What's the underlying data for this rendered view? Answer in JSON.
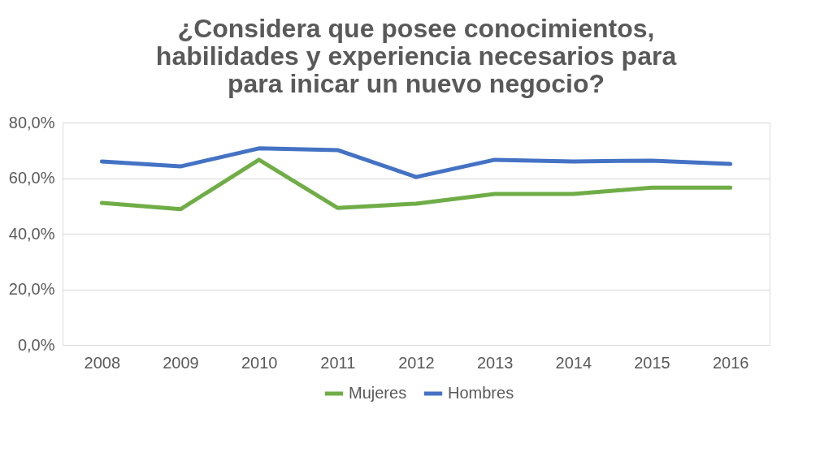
{
  "chart_data": {
    "type": "line",
    "title": "¿Considera que posee conocimientos, habilidades y experiencia necesarios para para inicar un nuevo negocio?",
    "categories": [
      "2008",
      "2009",
      "2010",
      "2011",
      "2012",
      "2013",
      "2014",
      "2015",
      "2016"
    ],
    "series": [
      {
        "name": "Mujeres",
        "color": "#70ad47",
        "values": [
          51.1,
          48.8,
          66.6,
          49.3,
          50.8,
          54.3,
          54.3,
          56.6,
          56.6
        ]
      },
      {
        "name": "Hombres",
        "color": "#4472c4",
        "values": [
          66.0,
          64.2,
          70.7,
          70.1,
          60.4,
          66.6,
          66.0,
          66.3,
          65.1
        ]
      }
    ],
    "ylim": [
      0,
      80
    ],
    "yticks": [
      {
        "value": 0,
        "label": "0,0%"
      },
      {
        "value": 20,
        "label": "20,0%"
      },
      {
        "value": 40,
        "label": "40,0%"
      },
      {
        "value": 60,
        "label": "60,0%"
      },
      {
        "value": 80,
        "label": "80,0%"
      }
    ],
    "grid": "y",
    "legend": "bottom",
    "marker": "none",
    "line_style": "solid"
  }
}
